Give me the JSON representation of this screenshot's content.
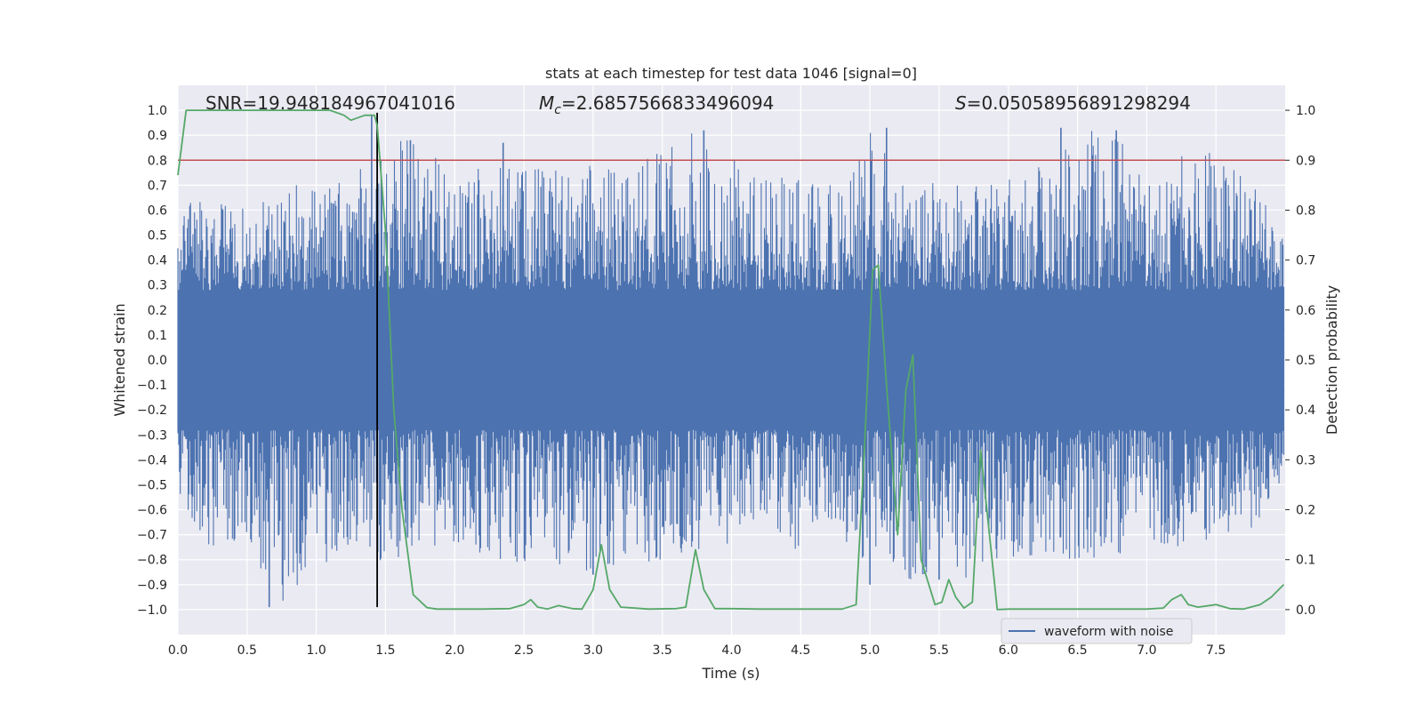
{
  "chart_data": {
    "type": "line",
    "title": "stats at each timestep for test data 1046 [signal=0]",
    "xlabel": "Time (s)",
    "ylabel": "Whitened strain",
    "y2label": "Detection probability",
    "xlim": [
      0.0,
      8.0
    ],
    "ylim": [
      -1.1,
      1.1
    ],
    "y2lim": [
      -0.05,
      1.05
    ],
    "xticks": [
      0.0,
      0.5,
      1.0,
      1.5,
      2.0,
      2.5,
      3.0,
      3.5,
      4.0,
      4.5,
      5.0,
      5.5,
      6.0,
      6.5,
      7.0,
      7.5
    ],
    "yticks": [
      -1.0,
      -0.9,
      -0.8,
      -0.7,
      -0.6,
      -0.5,
      -0.4,
      -0.3,
      -0.2,
      -0.1,
      0.0,
      0.1,
      0.2,
      0.3,
      0.4,
      0.5,
      0.6,
      0.7,
      0.8,
      0.9,
      1.0
    ],
    "y2ticks": [
      0.0,
      0.1,
      0.2,
      0.3,
      0.4,
      0.5,
      0.6,
      0.7,
      0.8,
      0.9,
      1.0
    ],
    "grid": true,
    "legend_position": "bottom-right",
    "annotations": {
      "snr": "SNR=19.948184967041016",
      "mc_symbol": "M",
      "mc_sub": "c",
      "mc_value": "=2.6857566833496094",
      "s_symbol": "S",
      "s_value": "=0.05058956891298294"
    },
    "series": [
      {
        "name": "waveform with noise",
        "axis": "left",
        "color": "#4c72b0",
        "kind": "noise-waveform",
        "envelope": {
          "x": [
            0.0,
            0.25,
            0.5,
            0.75,
            1.0,
            1.25,
            1.5,
            1.75,
            2.0,
            2.25,
            2.5,
            2.75,
            3.0,
            3.25,
            3.5,
            3.75,
            4.0,
            4.25,
            4.5,
            4.75,
            5.0,
            5.25,
            5.5,
            5.75,
            6.0,
            6.25,
            6.5,
            6.75,
            7.0,
            7.25,
            7.5,
            7.75,
            7.99
          ],
          "max": [
            0.62,
            0.65,
            0.62,
            0.7,
            0.7,
            0.72,
            0.9,
            0.88,
            0.73,
            0.8,
            0.78,
            0.76,
            0.78,
            0.8,
            0.84,
            0.92,
            0.84,
            0.76,
            0.74,
            0.71,
            0.93,
            0.72,
            0.73,
            0.74,
            0.76,
            0.82,
            0.93,
            0.92,
            0.8,
            0.82,
            0.85,
            0.72,
            0.5
          ],
          "min": [
            -0.55,
            -0.77,
            -0.75,
            -0.99,
            -0.84,
            -0.8,
            -0.85,
            -0.75,
            -0.74,
            -0.81,
            -0.84,
            -0.86,
            -0.85,
            -0.83,
            -0.8,
            -0.79,
            -0.76,
            -0.72,
            -0.77,
            -0.68,
            -0.9,
            -0.88,
            -0.88,
            -0.87,
            -0.8,
            -0.82,
            -0.8,
            -0.79,
            -0.76,
            -0.78,
            -0.74,
            -0.68,
            -0.5
          ]
        },
        "spikes": [
          {
            "x": 0.66,
            "y": -0.99
          },
          {
            "x": 1.4,
            "y": 0.98
          },
          {
            "x": 1.68,
            "y": 0.88
          },
          {
            "x": 2.35,
            "y": 0.87
          },
          {
            "x": 3.0,
            "y": -0.86
          },
          {
            "x": 3.8,
            "y": 0.92
          },
          {
            "x": 5.0,
            "y": -0.9
          },
          {
            "x": 5.12,
            "y": 0.93
          },
          {
            "x": 5.5,
            "y": -0.88
          },
          {
            "x": 6.38,
            "y": 0.93
          },
          {
            "x": 6.78,
            "y": 0.92
          }
        ]
      },
      {
        "name": "",
        "axis": "right",
        "color": "#55a868",
        "x": [
          0.0,
          0.06,
          0.2,
          0.5,
          0.8,
          1.1,
          1.2,
          1.25,
          1.35,
          1.42,
          1.44,
          1.5,
          1.56,
          1.62,
          1.7,
          1.8,
          1.87,
          2.0,
          2.2,
          2.4,
          2.5,
          2.55,
          2.6,
          2.67,
          2.75,
          2.85,
          2.92,
          3.0,
          3.06,
          3.12,
          3.2,
          3.3,
          3.4,
          3.6,
          3.67,
          3.74,
          3.8,
          3.88,
          4.0,
          4.2,
          4.5,
          4.8,
          4.9,
          4.96,
          5.02,
          5.06,
          5.12,
          5.2,
          5.26,
          5.31,
          5.37,
          5.47,
          5.52,
          5.57,
          5.62,
          5.68,
          5.74,
          5.8,
          5.92,
          6.0,
          6.5,
          7.0,
          7.12,
          7.18,
          7.25,
          7.3,
          7.37,
          7.5,
          7.6,
          7.7,
          7.82,
          7.9,
          7.99
        ],
        "y": [
          0.87,
          1.0,
          1.0,
          1.0,
          1.0,
          1.0,
          0.99,
          0.98,
          0.99,
          0.99,
          0.97,
          0.76,
          0.4,
          0.2,
          0.03,
          0.004,
          0.001,
          0.001,
          0.001,
          0.002,
          0.01,
          0.02,
          0.005,
          0.001,
          0.008,
          0.002,
          0.001,
          0.04,
          0.13,
          0.04,
          0.005,
          0.003,
          0.001,
          0.002,
          0.005,
          0.12,
          0.04,
          0.002,
          0.002,
          0.001,
          0.001,
          0.001,
          0.01,
          0.32,
          0.68,
          0.69,
          0.45,
          0.15,
          0.44,
          0.51,
          0.1,
          0.01,
          0.015,
          0.06,
          0.025,
          0.003,
          0.015,
          0.32,
          0.0,
          0.001,
          0.001,
          0.001,
          0.003,
          0.02,
          0.03,
          0.01,
          0.005,
          0.01,
          0.002,
          0.001,
          0.01,
          0.025,
          0.05
        ]
      }
    ],
    "reference_lines": [
      {
        "orientation": "horizontal",
        "axis": "right",
        "value": 0.9,
        "color": "#c44e52"
      },
      {
        "orientation": "vertical",
        "value": 1.44,
        "from": -0.99,
        "to": 0.99,
        "color": "#000000"
      }
    ]
  }
}
